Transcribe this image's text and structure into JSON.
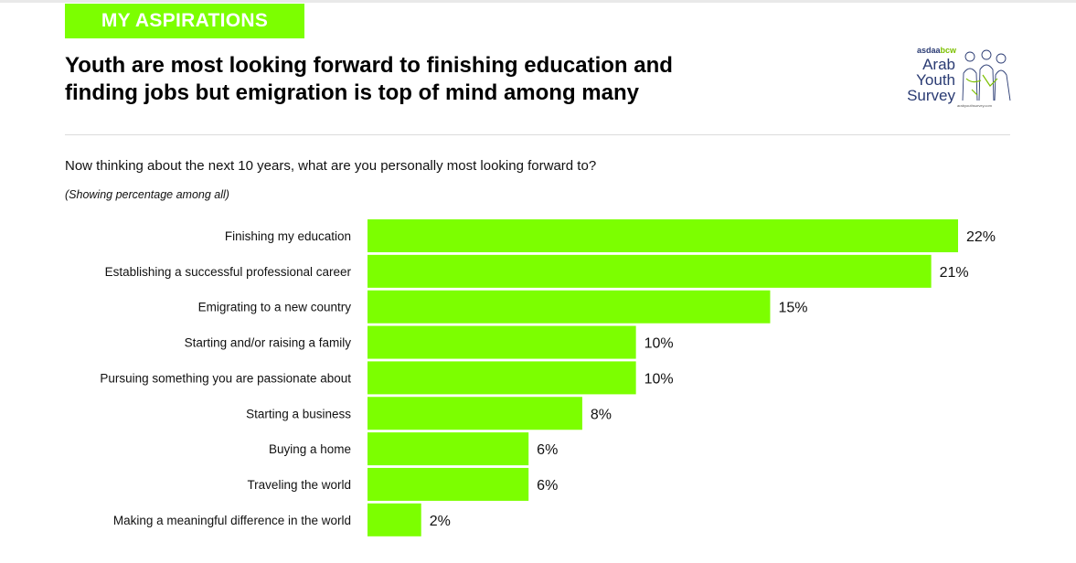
{
  "section_tag": "MY ASPIRATIONS",
  "headline_line1": "Youth are most looking forward to finishing education and",
  "headline_line2": "finding jobs but emigration is top of mind among many",
  "logo": {
    "brand_prefix": "asdaa",
    "brand_suffix": "bcw",
    "line1": "Arab",
    "line2": "Youth",
    "line3": "Survey",
    "url": "arabyouthsurvey.com"
  },
  "question": "Now thinking about the next 10 years, what are you personally most looking forward to?",
  "note": "(Showing percentage among all)",
  "colors": {
    "accent": "#7cff00"
  },
  "chart_data": {
    "type": "bar",
    "orientation": "horizontal",
    "categories": [
      "Finishing my education",
      "Establishing a successful professional career",
      "Emigrating to a new country",
      "Starting and/or raising a family",
      "Pursuing something you are passionate about",
      "Starting a business",
      "Buying a home",
      "Traveling the world",
      "Making a meaningful difference in the world"
    ],
    "values": [
      22,
      21,
      15,
      10,
      10,
      8,
      6,
      6,
      2
    ],
    "value_labels": [
      "22%",
      "21%",
      "15%",
      "10%",
      "10%",
      "8%",
      "6%",
      "6%",
      "2%"
    ],
    "unit": "%",
    "xlim": [
      0,
      22
    ],
    "grid": false,
    "bar_color": "#7cff00"
  }
}
